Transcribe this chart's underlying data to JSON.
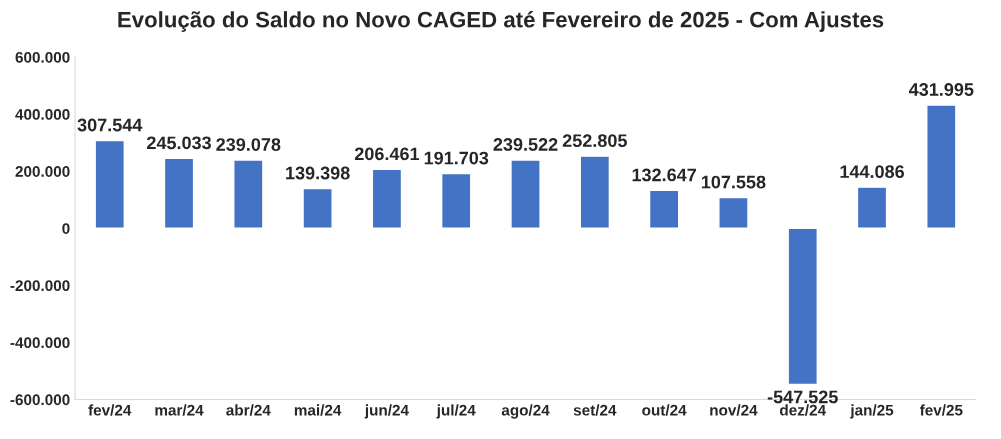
{
  "chart_data": {
    "type": "bar",
    "title": "Evolução do Saldo no Novo CAGED até Fevereiro de 2025 - Com Ajustes",
    "categories": [
      "fev/24",
      "mar/24",
      "abr/24",
      "mai/24",
      "jun/24",
      "jul/24",
      "ago/24",
      "set/24",
      "out/24",
      "nov/24",
      "dez/24",
      "jan/25",
      "fev/25"
    ],
    "values": [
      307544,
      245033,
      239078,
      139398,
      206461,
      191703,
      239522,
      252805,
      132647,
      107558,
      -547525,
      144086,
      431995
    ],
    "value_labels": [
      "307.544",
      "245.033",
      "239.078",
      "139.398",
      "206.461",
      "191.703",
      "239.522",
      "252.805",
      "132.647",
      "107.558",
      "-547.525",
      "144.086",
      "431.995"
    ],
    "color": "#4472c4",
    "ylim": [
      -600000,
      600000
    ],
    "yticks": [
      {
        "value": -600000,
        "label": "-600.000"
      },
      {
        "value": -400000,
        "label": "-400.000"
      },
      {
        "value": -200000,
        "label": "-200.000"
      },
      0,
      {
        "value": 200000,
        "label": "200.000"
      },
      {
        "value": 400000,
        "label": "400.000"
      },
      {
        "value": 600000,
        "label": "600.000"
      }
    ],
    "grid": false,
    "legend": false
  }
}
